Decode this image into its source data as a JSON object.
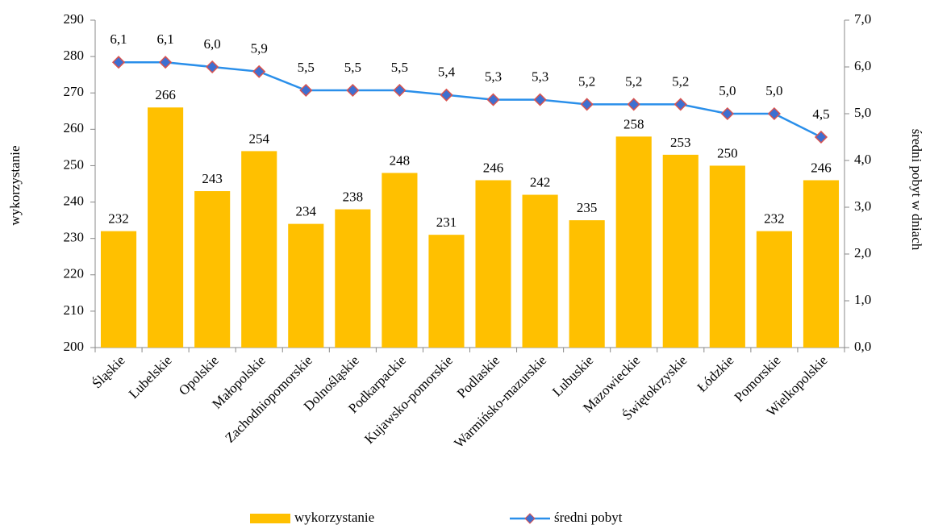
{
  "chart_data": {
    "type": "bar",
    "categories": [
      "Śląskie",
      "Lubelskie",
      "Opolskie",
      "Małopolskie",
      "Zachodniopomorskie",
      "Dolnośląskie",
      "Podkarpackie",
      "Kujawsko-pomorskie",
      "Podlaskie",
      "Warmińsko-mazurskie",
      "Lubuskie",
      "Mazowieckie",
      "Świętokrzyskie",
      "Łódzkie",
      "Pomorskie",
      "Wielkopolskie"
    ],
    "series": [
      {
        "name": "wykorzystanie",
        "type": "bar",
        "color": "#FFC000",
        "axis": "y",
        "values": [
          232,
          266,
          243,
          254,
          234,
          238,
          248,
          231,
          246,
          242,
          235,
          258,
          253,
          250,
          232,
          246
        ]
      },
      {
        "name": "średni pobyt",
        "type": "line",
        "color": "#2A8FEA",
        "marker_color": "#3D6FD1",
        "axis": "y2",
        "values": [
          6.1,
          6.1,
          6.0,
          5.9,
          5.5,
          5.5,
          5.5,
          5.4,
          5.3,
          5.3,
          5.2,
          5.2,
          5.2,
          5.0,
          5.0,
          4.5
        ],
        "value_labels": [
          "6,1",
          "6,1",
          "6,0",
          "5,9",
          "5,5",
          "5,5",
          "5,5",
          "5,4",
          "5,3",
          "5,3",
          "5,2",
          "5,2",
          "5,2",
          "5,0",
          "5,0",
          "4,5"
        ]
      }
    ],
    "ylabel": "wykorzystanie",
    "y2label": "średni pobyt w dniach",
    "ylim": [
      200,
      290
    ],
    "yticks": [
      200,
      210,
      220,
      230,
      240,
      250,
      260,
      270,
      280,
      290
    ],
    "y2lim": [
      0,
      7
    ],
    "y2ticks": [
      {
        "value": 0,
        "label": "0,0"
      },
      {
        "value": 1,
        "label": "1,0"
      },
      {
        "value": 2,
        "label": "2,0"
      },
      {
        "value": 3,
        "label": "3,0"
      },
      {
        "value": 4,
        "label": "4,0"
      },
      {
        "value": 5,
        "label": "5,0"
      },
      {
        "value": 6,
        "label": "6,0"
      },
      {
        "value": 7,
        "label": "7,0"
      }
    ],
    "grid": false,
    "legend": "bottom"
  }
}
